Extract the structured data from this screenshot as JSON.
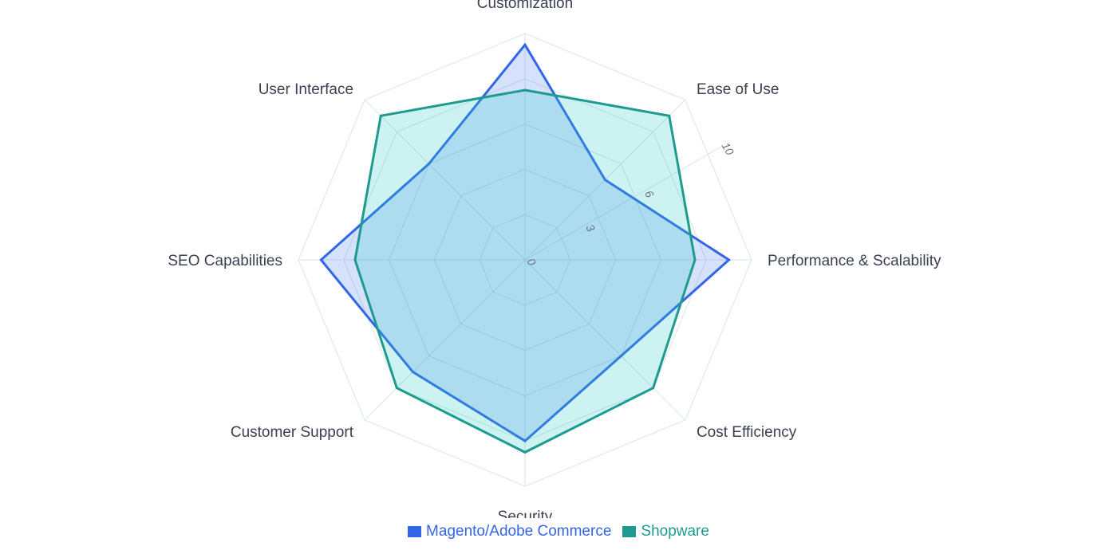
{
  "chart_data": {
    "type": "radar",
    "axes": [
      "Customization",
      "Ease of Use",
      "Performance & Scalability",
      "Cost Efficiency",
      "Security",
      "Customer Support",
      "SEO Capabilities",
      "User Interface"
    ],
    "rlim": [
      0,
      10
    ],
    "ticks": [
      0,
      3,
      6,
      10
    ],
    "grid": true,
    "legend_position": "bottom",
    "series": [
      {
        "name": "Magento/Adobe Commerce",
        "values": [
          9.5,
          5,
          9,
          6,
          8,
          7,
          9,
          6
        ],
        "color": "#3366e6",
        "fill": "rgba(70,120,240,0.22)"
      },
      {
        "name": "Shopware",
        "values": [
          7.5,
          9,
          7.5,
          8,
          8.5,
          8,
          7.5,
          9
        ],
        "color": "#1f9a8f",
        "fill": "rgba(40,200,200,0.24)"
      }
    ]
  }
}
